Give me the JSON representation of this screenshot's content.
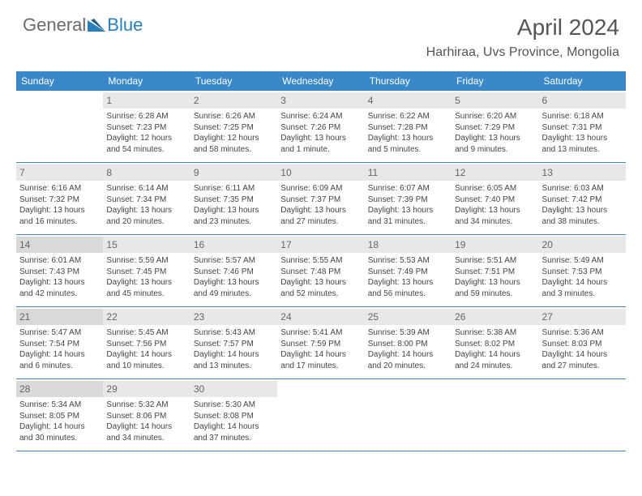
{
  "logo": {
    "general": "General",
    "blue": "Blue"
  },
  "title": "April 2024",
  "location": "Harhiraa, Uvs Province, Mongolia",
  "colors": {
    "header_bg": "#3a88c9",
    "daynum_bg": "#e8e8e8",
    "daynum_shade_bg": "#d9d9d9",
    "border": "#3a88c9",
    "text": "#444444"
  },
  "days_of_week": [
    "Sunday",
    "Monday",
    "Tuesday",
    "Wednesday",
    "Thursday",
    "Friday",
    "Saturday"
  ],
  "weeks": [
    [
      {
        "empty": true
      },
      {
        "num": "1",
        "sunrise": "Sunrise: 6:28 AM",
        "sunset": "Sunset: 7:23 PM",
        "d1": "Daylight: 12 hours",
        "d2": "and 54 minutes."
      },
      {
        "num": "2",
        "sunrise": "Sunrise: 6:26 AM",
        "sunset": "Sunset: 7:25 PM",
        "d1": "Daylight: 12 hours",
        "d2": "and 58 minutes."
      },
      {
        "num": "3",
        "sunrise": "Sunrise: 6:24 AM",
        "sunset": "Sunset: 7:26 PM",
        "d1": "Daylight: 13 hours",
        "d2": "and 1 minute."
      },
      {
        "num": "4",
        "sunrise": "Sunrise: 6:22 AM",
        "sunset": "Sunset: 7:28 PM",
        "d1": "Daylight: 13 hours",
        "d2": "and 5 minutes."
      },
      {
        "num": "5",
        "sunrise": "Sunrise: 6:20 AM",
        "sunset": "Sunset: 7:29 PM",
        "d1": "Daylight: 13 hours",
        "d2": "and 9 minutes."
      },
      {
        "num": "6",
        "sunrise": "Sunrise: 6:18 AM",
        "sunset": "Sunset: 7:31 PM",
        "d1": "Daylight: 13 hours",
        "d2": "and 13 minutes."
      }
    ],
    [
      {
        "num": "7",
        "sunrise": "Sunrise: 6:16 AM",
        "sunset": "Sunset: 7:32 PM",
        "d1": "Daylight: 13 hours",
        "d2": "and 16 minutes."
      },
      {
        "num": "8",
        "sunrise": "Sunrise: 6:14 AM",
        "sunset": "Sunset: 7:34 PM",
        "d1": "Daylight: 13 hours",
        "d2": "and 20 minutes."
      },
      {
        "num": "9",
        "sunrise": "Sunrise: 6:11 AM",
        "sunset": "Sunset: 7:35 PM",
        "d1": "Daylight: 13 hours",
        "d2": "and 23 minutes."
      },
      {
        "num": "10",
        "sunrise": "Sunrise: 6:09 AM",
        "sunset": "Sunset: 7:37 PM",
        "d1": "Daylight: 13 hours",
        "d2": "and 27 minutes."
      },
      {
        "num": "11",
        "sunrise": "Sunrise: 6:07 AM",
        "sunset": "Sunset: 7:39 PM",
        "d1": "Daylight: 13 hours",
        "d2": "and 31 minutes."
      },
      {
        "num": "12",
        "sunrise": "Sunrise: 6:05 AM",
        "sunset": "Sunset: 7:40 PM",
        "d1": "Daylight: 13 hours",
        "d2": "and 34 minutes."
      },
      {
        "num": "13",
        "sunrise": "Sunrise: 6:03 AM",
        "sunset": "Sunset: 7:42 PM",
        "d1": "Daylight: 13 hours",
        "d2": "and 38 minutes."
      }
    ],
    [
      {
        "num": "14",
        "shade": true,
        "sunrise": "Sunrise: 6:01 AM",
        "sunset": "Sunset: 7:43 PM",
        "d1": "Daylight: 13 hours",
        "d2": "and 42 minutes."
      },
      {
        "num": "15",
        "sunrise": "Sunrise: 5:59 AM",
        "sunset": "Sunset: 7:45 PM",
        "d1": "Daylight: 13 hours",
        "d2": "and 45 minutes."
      },
      {
        "num": "16",
        "sunrise": "Sunrise: 5:57 AM",
        "sunset": "Sunset: 7:46 PM",
        "d1": "Daylight: 13 hours",
        "d2": "and 49 minutes."
      },
      {
        "num": "17",
        "sunrise": "Sunrise: 5:55 AM",
        "sunset": "Sunset: 7:48 PM",
        "d1": "Daylight: 13 hours",
        "d2": "and 52 minutes."
      },
      {
        "num": "18",
        "sunrise": "Sunrise: 5:53 AM",
        "sunset": "Sunset: 7:49 PM",
        "d1": "Daylight: 13 hours",
        "d2": "and 56 minutes."
      },
      {
        "num": "19",
        "sunrise": "Sunrise: 5:51 AM",
        "sunset": "Sunset: 7:51 PM",
        "d1": "Daylight: 13 hours",
        "d2": "and 59 minutes."
      },
      {
        "num": "20",
        "sunrise": "Sunrise: 5:49 AM",
        "sunset": "Sunset: 7:53 PM",
        "d1": "Daylight: 14 hours",
        "d2": "and 3 minutes."
      }
    ],
    [
      {
        "num": "21",
        "shade": true,
        "sunrise": "Sunrise: 5:47 AM",
        "sunset": "Sunset: 7:54 PM",
        "d1": "Daylight: 14 hours",
        "d2": "and 6 minutes."
      },
      {
        "num": "22",
        "sunrise": "Sunrise: 5:45 AM",
        "sunset": "Sunset: 7:56 PM",
        "d1": "Daylight: 14 hours",
        "d2": "and 10 minutes."
      },
      {
        "num": "23",
        "sunrise": "Sunrise: 5:43 AM",
        "sunset": "Sunset: 7:57 PM",
        "d1": "Daylight: 14 hours",
        "d2": "and 13 minutes."
      },
      {
        "num": "24",
        "sunrise": "Sunrise: 5:41 AM",
        "sunset": "Sunset: 7:59 PM",
        "d1": "Daylight: 14 hours",
        "d2": "and 17 minutes."
      },
      {
        "num": "25",
        "sunrise": "Sunrise: 5:39 AM",
        "sunset": "Sunset: 8:00 PM",
        "d1": "Daylight: 14 hours",
        "d2": "and 20 minutes."
      },
      {
        "num": "26",
        "sunrise": "Sunrise: 5:38 AM",
        "sunset": "Sunset: 8:02 PM",
        "d1": "Daylight: 14 hours",
        "d2": "and 24 minutes."
      },
      {
        "num": "27",
        "sunrise": "Sunrise: 5:36 AM",
        "sunset": "Sunset: 8:03 PM",
        "d1": "Daylight: 14 hours",
        "d2": "and 27 minutes."
      }
    ],
    [
      {
        "num": "28",
        "shade": true,
        "sunrise": "Sunrise: 5:34 AM",
        "sunset": "Sunset: 8:05 PM",
        "d1": "Daylight: 14 hours",
        "d2": "and 30 minutes."
      },
      {
        "num": "29",
        "sunrise": "Sunrise: 5:32 AM",
        "sunset": "Sunset: 8:06 PM",
        "d1": "Daylight: 14 hours",
        "d2": "and 34 minutes."
      },
      {
        "num": "30",
        "sunrise": "Sunrise: 5:30 AM",
        "sunset": "Sunset: 8:08 PM",
        "d1": "Daylight: 14 hours",
        "d2": "and 37 minutes."
      },
      {
        "empty": true
      },
      {
        "empty": true
      },
      {
        "empty": true
      },
      {
        "empty": true
      }
    ]
  ]
}
